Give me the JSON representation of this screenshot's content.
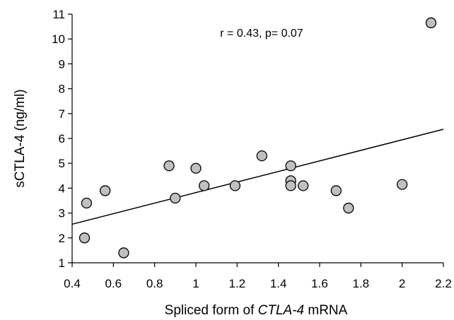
{
  "chart_data": {
    "type": "scatter",
    "title": "",
    "xlabel": {
      "prefix": "Spliced form of ",
      "italic": "CTLA-4",
      "suffix": " mRNA"
    },
    "ylabel": "sCTLA-4 (ng/ml)",
    "annotation": "r = 0.43, p= 0.07",
    "xlim": [
      0.4,
      2.2
    ],
    "ylim": [
      1,
      11
    ],
    "xticks": [
      0.4,
      0.6,
      0.8,
      1,
      1.2,
      1.4,
      1.6,
      1.8,
      2,
      2.2
    ],
    "yticks": [
      1,
      2,
      3,
      4,
      5,
      6,
      7,
      8,
      9,
      10,
      11
    ],
    "grid": false,
    "points": [
      {
        "x": 0.46,
        "y": 2.0
      },
      {
        "x": 0.47,
        "y": 3.4
      },
      {
        "x": 0.56,
        "y": 3.9
      },
      {
        "x": 0.65,
        "y": 1.4
      },
      {
        "x": 0.87,
        "y": 4.9
      },
      {
        "x": 0.9,
        "y": 3.6
      },
      {
        "x": 1.0,
        "y": 4.8
      },
      {
        "x": 1.04,
        "y": 4.1
      },
      {
        "x": 1.19,
        "y": 4.1
      },
      {
        "x": 1.32,
        "y": 5.3
      },
      {
        "x": 1.46,
        "y": 4.9
      },
      {
        "x": 1.46,
        "y": 4.3
      },
      {
        "x": 1.46,
        "y": 4.1
      },
      {
        "x": 1.52,
        "y": 4.1
      },
      {
        "x": 1.68,
        "y": 3.9
      },
      {
        "x": 1.74,
        "y": 3.2
      },
      {
        "x": 2.0,
        "y": 4.15
      },
      {
        "x": 2.14,
        "y": 10.65
      }
    ],
    "trendline": {
      "x": [
        0.4,
        2.2
      ],
      "y": [
        2.55,
        6.37
      ]
    },
    "marker_fill": "#c0c0c0",
    "marker_stroke": "#000000",
    "line_color": "#000000"
  }
}
